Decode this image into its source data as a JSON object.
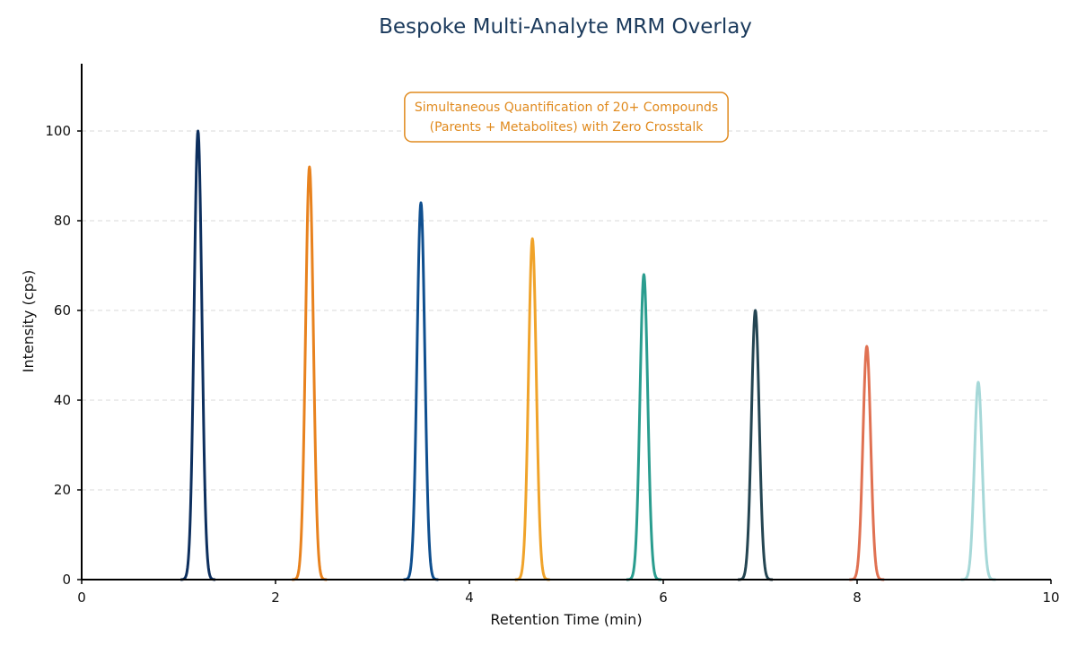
{
  "chart_data": {
    "type": "line",
    "title": "Bespoke Multi-Analyte MRM Overlay",
    "xlabel": "Retention Time (min)",
    "ylabel": "Intensity (cps)",
    "xlim": [
      0,
      10
    ],
    "ylim": [
      0,
      115
    ],
    "xticks": [
      0,
      2,
      4,
      6,
      8,
      10
    ],
    "yticks": [
      0,
      20,
      40,
      60,
      80,
      100
    ],
    "grid": "horizontal-dashed",
    "annotation": {
      "lines": [
        "Simultaneous Quantification of 20+ Compounds",
        "(Parents + Metabolites) with Zero Crosstalk"
      ],
      "color": "#e08a1e",
      "position": "top-center"
    },
    "peak_width_sigma_min": 0.04,
    "series": [
      {
        "retention_time": 1.2,
        "height": 100,
        "color": "#0d2f5e"
      },
      {
        "retention_time": 2.35,
        "height": 92,
        "color": "#e8821e"
      },
      {
        "retention_time": 3.5,
        "height": 84,
        "color": "#0f4f8f"
      },
      {
        "retention_time": 4.65,
        "height": 76,
        "color": "#f0a32a"
      },
      {
        "retention_time": 5.8,
        "height": 68,
        "color": "#2a9d8f"
      },
      {
        "retention_time": 6.95,
        "height": 60,
        "color": "#244552"
      },
      {
        "retention_time": 8.1,
        "height": 52,
        "color": "#e07152"
      },
      {
        "retention_time": 9.25,
        "height": 44,
        "color": "#a6d8d8"
      }
    ]
  }
}
